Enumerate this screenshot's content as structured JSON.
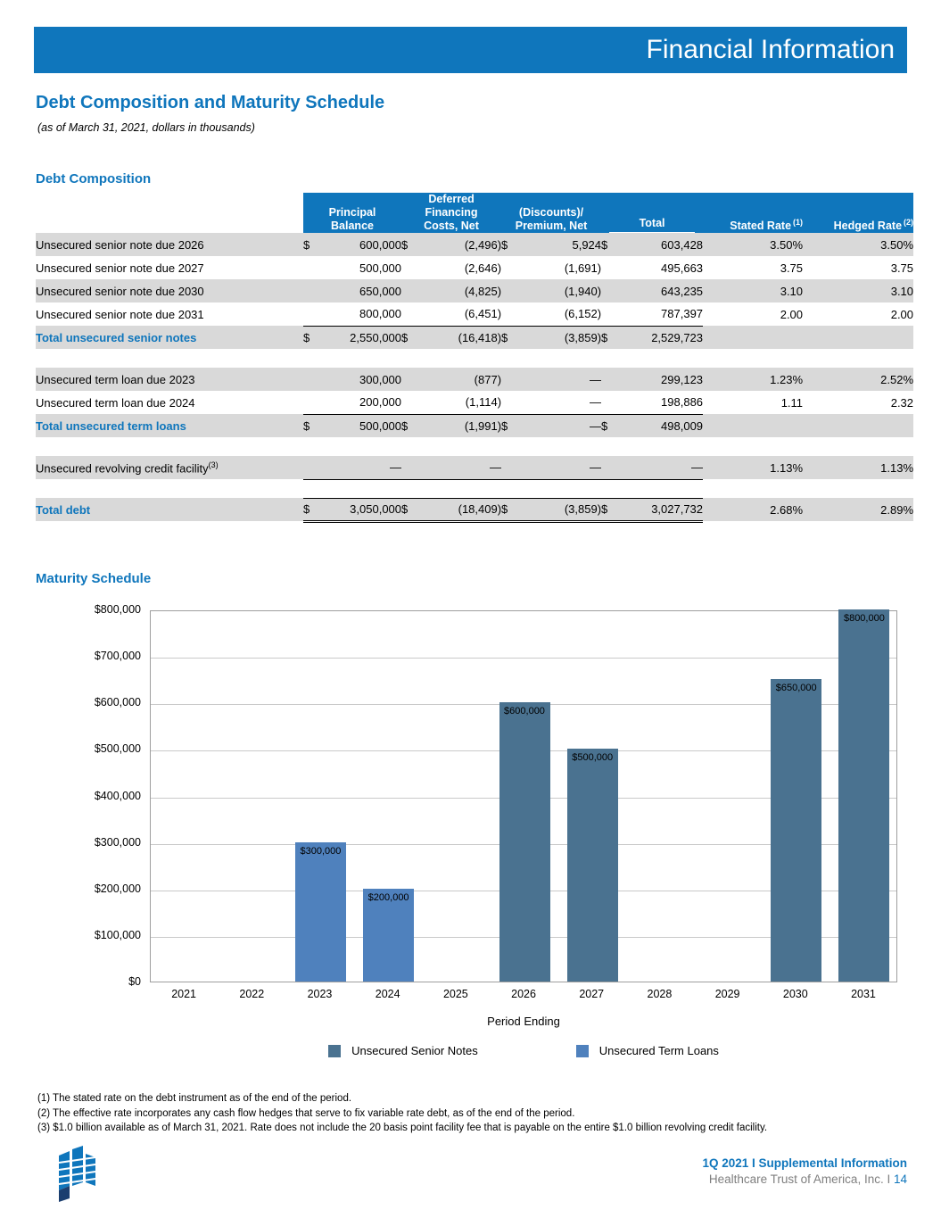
{
  "banner": {
    "title": "Financial Information"
  },
  "page": {
    "title": "Debt Composition and Maturity Schedule",
    "subtitle": "(as of March 31, 2021, dollars in thousands)"
  },
  "colors": {
    "accent": "#0F76BC",
    "shade": "#D9D9D9",
    "dark": "#4A7290",
    "light": "#4F81BD",
    "grid": "#C9C9C9"
  },
  "debt_table": {
    "section_title": "Debt Composition",
    "headers": {
      "principal": "Principal\nBalance",
      "deferred": "Deferred\nFinancing\nCosts, Net",
      "discounts": "(Discounts)/\nPremium, Net",
      "total": "Total",
      "stated": "Stated Rate",
      "stated_sup": "(1)",
      "hedged": "Hedged Rate",
      "hedged_sup": "(2)"
    },
    "rows": [
      {
        "type": "data",
        "shade": true,
        "label": "Unsecured senior note due 2026",
        "d1": "$",
        "v1": "600,000",
        "d2": "$",
        "v2": "(2,496)",
        "d3": "$",
        "v3": "5,924",
        "d4": "$",
        "v4": "603,428",
        "stated": "3.50%",
        "hedged": "3.50%"
      },
      {
        "type": "data",
        "shade": false,
        "label": "Unsecured senior note due 2027",
        "v1": "500,000",
        "v2": "(2,646)",
        "v3": "(1,691)",
        "v4": "495,663",
        "stated": "3.75",
        "hedged": "3.75"
      },
      {
        "type": "data",
        "shade": true,
        "label": "Unsecured senior note due 2030",
        "v1": "650,000",
        "v2": "(4,825)",
        "v3": "(1,940)",
        "v4": "643,235",
        "stated": "3.10",
        "hedged": "3.10"
      },
      {
        "type": "data",
        "shade": false,
        "underline": true,
        "label": "Unsecured senior note due 2031",
        "v1": "800,000",
        "v2": "(6,451)",
        "v3": "(6,152)",
        "v4": "787,397",
        "stated": "2.00",
        "hedged": "2.00"
      },
      {
        "type": "data",
        "shade": true,
        "total": true,
        "label": "Total unsecured senior notes",
        "d1": "$",
        "v1": "2,550,000",
        "d2": "$",
        "v2": "(16,418)",
        "d3": "$",
        "v3": "(3,859)",
        "d4": "$",
        "v4": "2,529,723",
        "stated": "",
        "hedged": ""
      },
      {
        "type": "spacer"
      },
      {
        "type": "data",
        "shade": true,
        "label": "Unsecured term loan due 2023",
        "v1": "300,000",
        "v2": "(877)",
        "v3": "—",
        "v4": "299,123",
        "stated": "1.23%",
        "hedged": "2.52%"
      },
      {
        "type": "data",
        "shade": false,
        "underline": true,
        "label": "Unsecured term loan due 2024",
        "v1": "200,000",
        "v2": "(1,114)",
        "v3": "—",
        "v4": "198,886",
        "stated": "1.11",
        "hedged": "2.32"
      },
      {
        "type": "data",
        "shade": true,
        "total": true,
        "label": "Total unsecured term loans",
        "d1": "$",
        "v1": "500,000",
        "d2": "$",
        "v2": "(1,991)",
        "d3": "$",
        "v3": "—",
        "d4": "$",
        "v4": "498,009",
        "stated": "",
        "hedged": ""
      },
      {
        "type": "spacer"
      },
      {
        "type": "data",
        "shade": true,
        "underline": true,
        "label": "Unsecured revolving credit facility",
        "label_sup": "(3)",
        "v1": "—",
        "v2": "—",
        "v3": "—",
        "v4": "—",
        "stated": "1.13%",
        "hedged": "1.13%"
      },
      {
        "type": "spacer"
      },
      {
        "type": "data",
        "shade": true,
        "total": true,
        "grand": true,
        "label": "Total debt",
        "d1": "$",
        "v1": "3,050,000",
        "d2": "$",
        "v2": "(18,409)",
        "d3": "$",
        "v3": "(3,859)",
        "d4": "$",
        "v4": "3,027,732",
        "stated": "2.68%",
        "hedged": "2.89%"
      }
    ]
  },
  "chart_data": {
    "type": "bar",
    "title": "Maturity Schedule",
    "xlabel": "Period Ending",
    "ylabel": "",
    "ylim": [
      0,
      800000
    ],
    "ytick_step": 100000,
    "ytick_labels": [
      "$0",
      "$100,000",
      "$200,000",
      "$300,000",
      "$400,000",
      "$500,000",
      "$600,000",
      "$700,000",
      "$800,000"
    ],
    "grid": true,
    "legend_position": "bottom",
    "categories": [
      "2021",
      "2022",
      "2023",
      "2024",
      "2025",
      "2026",
      "2027",
      "2028",
      "2029",
      "2030",
      "2031"
    ],
    "series": [
      {
        "name": "Unsecured Senior Notes",
        "color": "#4A7290",
        "values": [
          0,
          0,
          0,
          0,
          0,
          600000,
          500000,
          0,
          0,
          650000,
          800000
        ]
      },
      {
        "name": "Unsecured Term Loans",
        "color": "#4F81BD",
        "values": [
          0,
          0,
          300000,
          200000,
          0,
          0,
          0,
          0,
          0,
          0,
          0
        ]
      }
    ],
    "bar_labels": {
      "2023": "$300,000",
      "2024": "$200,000",
      "2026": "$600,000",
      "2027": "$500,000",
      "2030": "$650,000",
      "2031": "$800,000"
    }
  },
  "footnotes": [
    "(1) The stated rate on the debt instrument as of the end of the period.",
    "(2) The effective rate incorporates any cash flow hedges that serve to fix variable rate debt, as of the end of the period.",
    "(3) $1.0 billion available as of March 31, 2021. Rate does not include the 20 basis point facility fee that is payable on the entire $1.0 billion revolving credit facility."
  ],
  "footer": {
    "line1": "1Q 2021 I Supplemental Information",
    "company": "Healthcare Trust of America, Inc. I ",
    "page_number": "14"
  }
}
